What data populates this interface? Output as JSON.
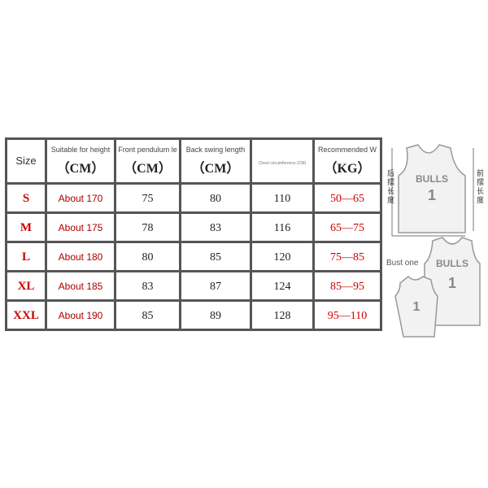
{
  "headers": [
    {
      "label": "Size",
      "unit": ""
    },
    {
      "label": "Suitable for height",
      "unit": "（CM）"
    },
    {
      "label": "Front pendulum le",
      "unit": "（CM）"
    },
    {
      "label": "Back swing length",
      "unit": "（CM）"
    },
    {
      "label": "Chest circumference (CM)",
      "unit": ""
    },
    {
      "label": "Recommended W",
      "unit": "（KG）"
    }
  ],
  "rows": [
    [
      "S",
      "About 170",
      "75",
      "80",
      "110",
      "50—65"
    ],
    [
      "M",
      "About 175",
      "78",
      "83",
      "116",
      "65—75"
    ],
    [
      "L",
      "About 180",
      "80",
      "85",
      "120",
      "75—85"
    ],
    [
      "XL",
      "About 185",
      "83",
      "87",
      "124",
      "85—95"
    ],
    [
      "XXL",
      "About 190",
      "85",
      "89",
      "128",
      "95—110"
    ]
  ],
  "diagram": {
    "back_length": "后摆长度",
    "front_length": "前摆长度",
    "bust": "Bust one",
    "jersey_text": "BULLS",
    "jersey_number": "1"
  }
}
